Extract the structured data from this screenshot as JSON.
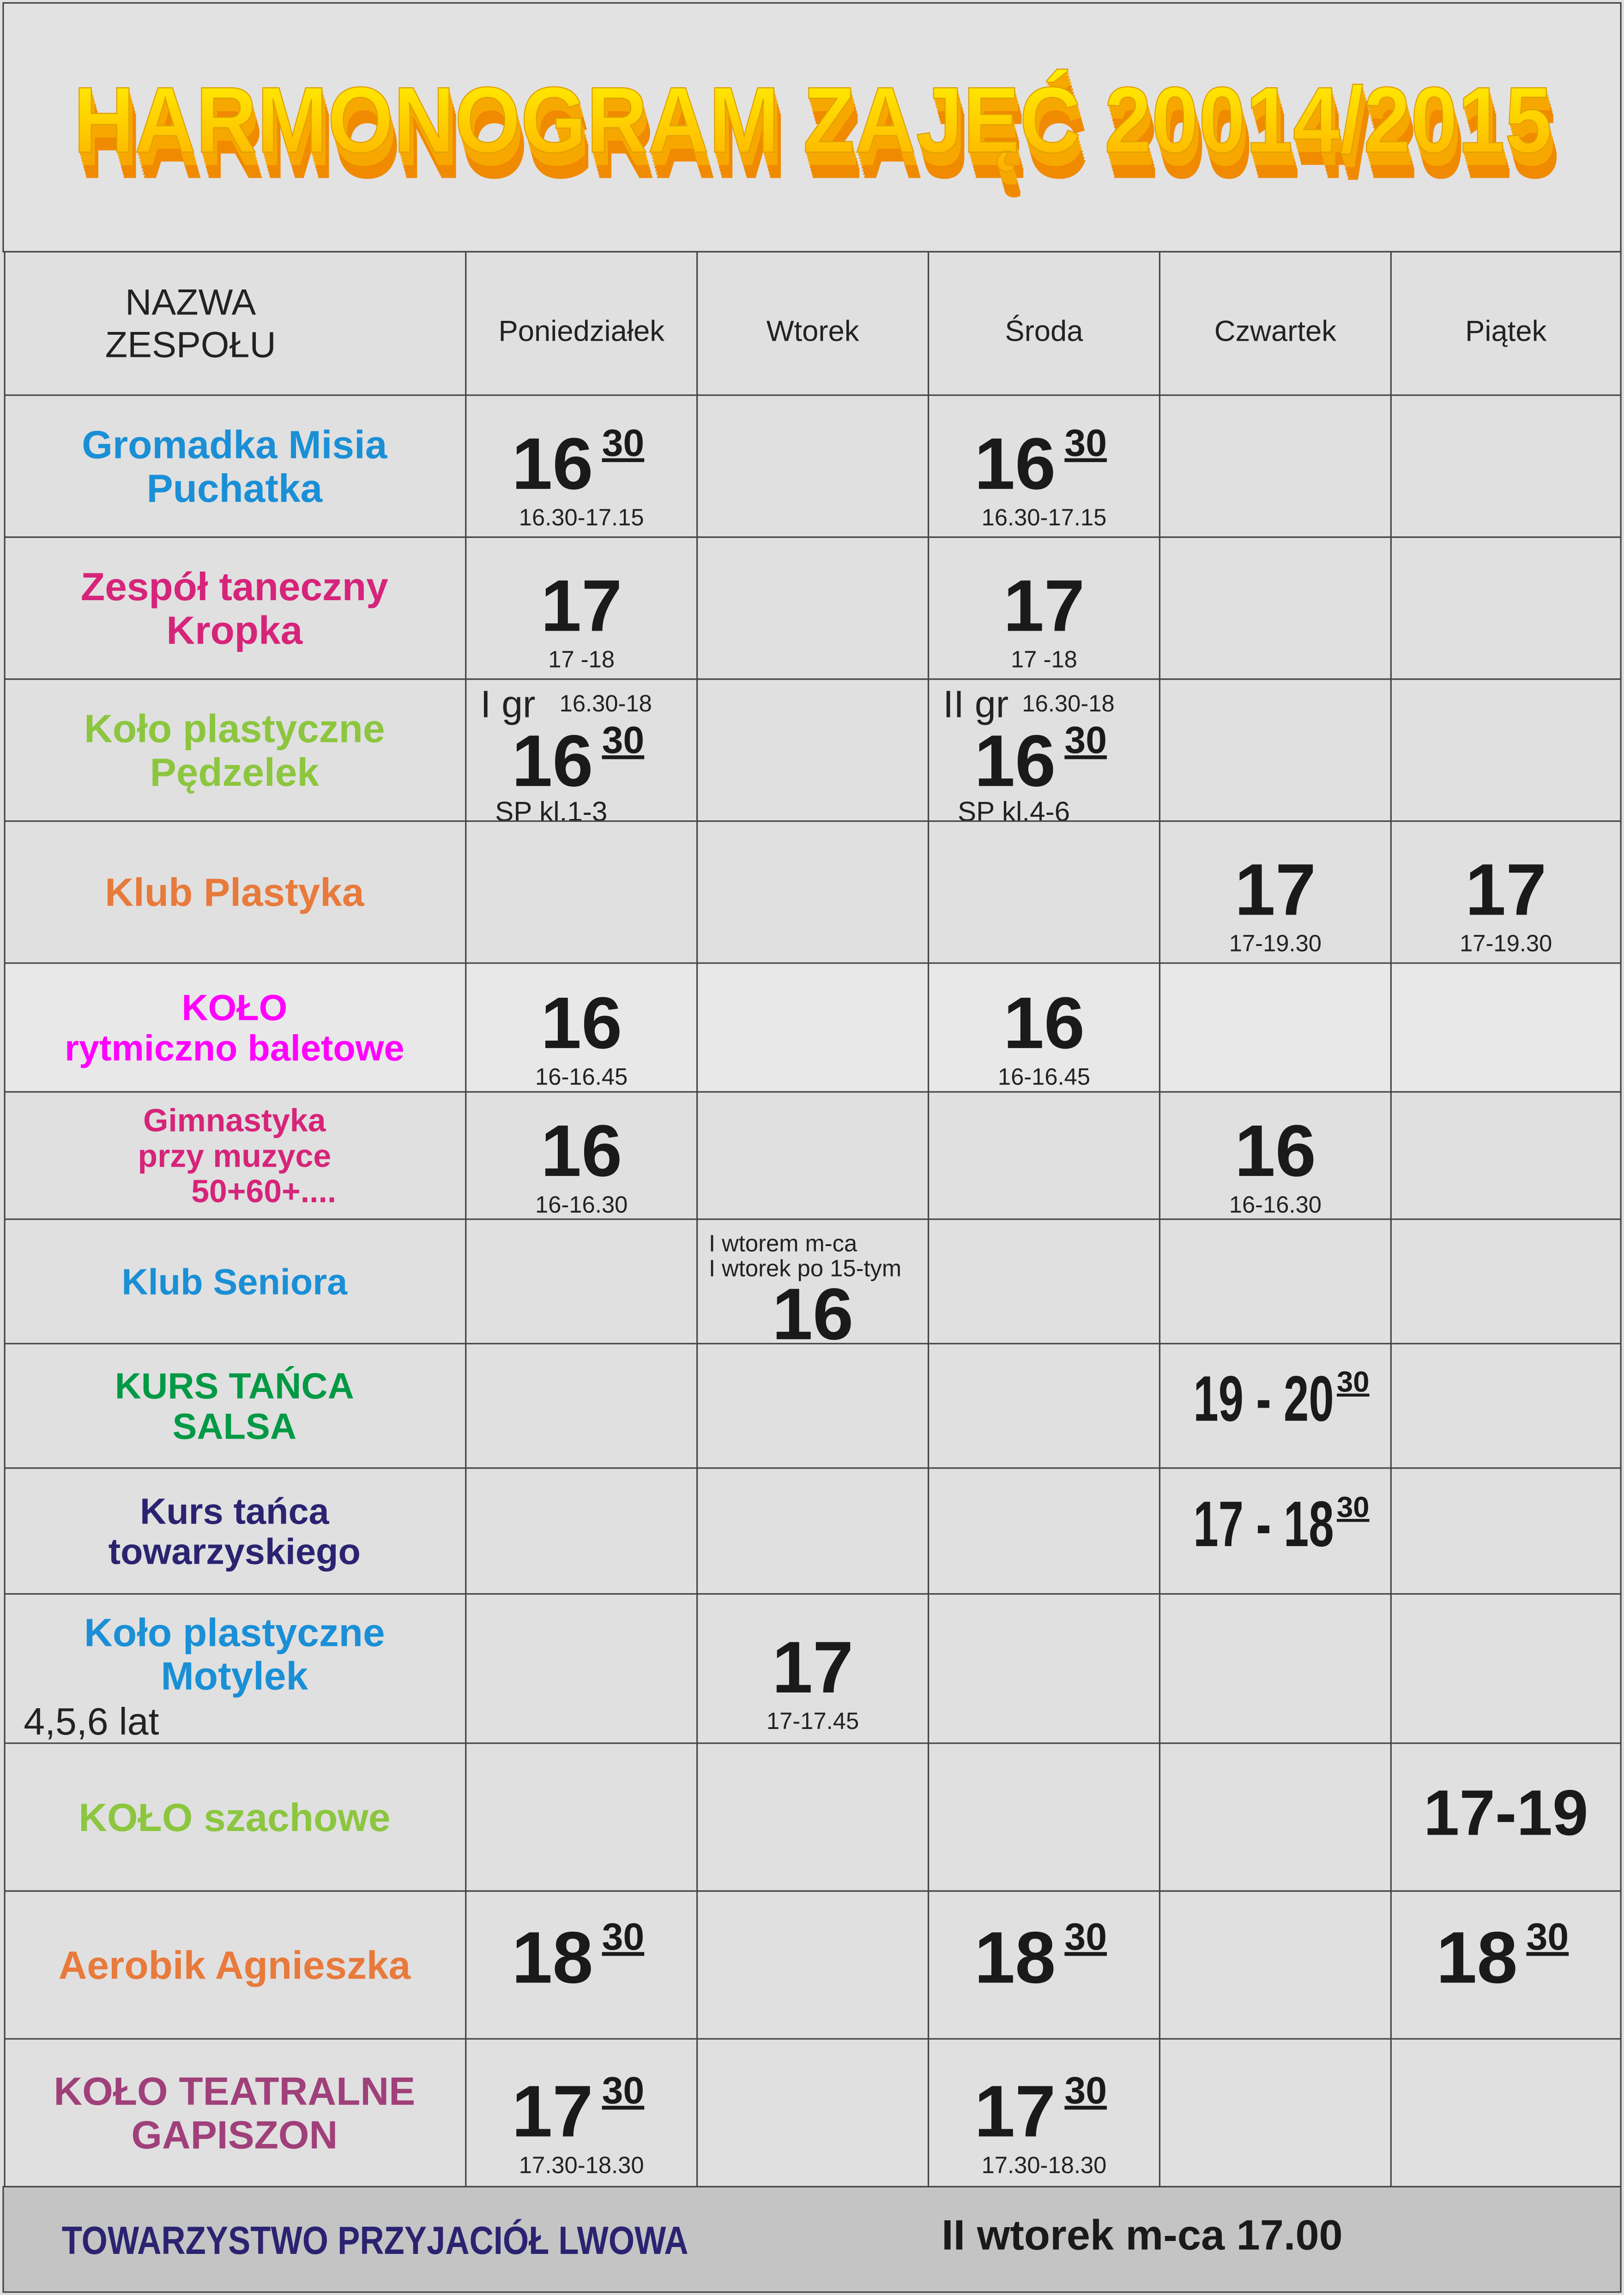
{
  "title": "HARMONOGRAM ZAJĘĆ 20014/2015",
  "header": {
    "name_label": [
      "NAZWA",
      "ZESPOŁU"
    ],
    "days": [
      "Poniedziałek",
      "Wtorek",
      "Środa",
      "Czwartek",
      "Piątek"
    ]
  },
  "rows": [
    {
      "name": [
        "Gromadka Misia",
        "Puchatka"
      ],
      "color": "#1a8fd6",
      "cells": [
        {
          "hour": "16",
          "minutes": "30",
          "range": "16.30-17.15"
        },
        null,
        {
          "hour": "16",
          "minutes": "30",
          "range": "16.30-17.15"
        },
        null,
        null
      ]
    },
    {
      "name": [
        "Zespół taneczny",
        "Kropka"
      ],
      "color": "#d6247a",
      "cells": [
        {
          "hour": "17",
          "range": "17 -18"
        },
        null,
        {
          "hour": "17",
          "range": "17 -18"
        },
        null,
        null
      ]
    },
    {
      "name": [
        "Koło plastyczne",
        "Pędzelek"
      ],
      "color": "#8cc63f",
      "cells": [
        {
          "group": "I gr",
          "range": "16.30-18",
          "hour": "16",
          "minutes": "30",
          "note": "SP kl.1-3"
        },
        null,
        {
          "group": "II gr",
          "range": "16.30-18",
          "hour": "16",
          "minutes": "30",
          "note": "SP kl.4-6"
        },
        null,
        null
      ]
    },
    {
      "name": [
        "Klub Plastyka"
      ],
      "color": "#e87a3c",
      "cells": [
        null,
        null,
        null,
        {
          "hour": "17",
          "range": "17-19.30"
        },
        {
          "hour": "17",
          "range": "17-19.30"
        }
      ]
    },
    {
      "name": [
        "KOŁO",
        "rytmiczno baletowe"
      ],
      "color": "#ff00ff",
      "cells": [
        {
          "hour": "16",
          "range": "16-16.45"
        },
        null,
        {
          "hour": "16",
          "range": "16-16.45"
        },
        null,
        null
      ]
    },
    {
      "name": [
        "Gimnastyka",
        "przy muzyce",
        "50+60+...."
      ],
      "color": "#d6247a",
      "cells": [
        {
          "hour": "16",
          "range": "16-16.30"
        },
        null,
        null,
        {
          "hour": "16",
          "range": "16-16.30"
        },
        null
      ]
    },
    {
      "name": [
        "Klub Seniora"
      ],
      "color": "#1a8fd6",
      "cells": [
        null,
        {
          "lines": [
            "I wtorem m-ca",
            "I wtorek po 15-tym"
          ],
          "hour": "16"
        },
        null,
        null,
        null
      ]
    },
    {
      "name": [
        "KURS TAŃCA",
        "SALSA"
      ],
      "color": "#009944",
      "cells": [
        null,
        null,
        null,
        {
          "hour": "19 - 20",
          "minutes": "30"
        },
        null
      ]
    },
    {
      "name": [
        "Kurs tańca",
        "towarzyskiego"
      ],
      "color": "#2b2370",
      "cells": [
        null,
        null,
        null,
        {
          "hour": "17 - 18",
          "minutes": "30"
        },
        null
      ]
    },
    {
      "name": [
        "Koło plastyczne",
        "Motylek"
      ],
      "sub": "4,5,6 lat",
      "color": "#1a8fd6",
      "cells": [
        null,
        {
          "hour": "17",
          "range": "17-17.45"
        },
        null,
        null,
        null
      ]
    },
    {
      "name": [
        "KOŁO szachowe"
      ],
      "color": "#8cc63f",
      "cells": [
        null,
        null,
        null,
        null,
        {
          "hour": "17-19"
        }
      ]
    },
    {
      "name": [
        "Aerobik Agnieszka"
      ],
      "color": "#e87a3c",
      "cells": [
        {
          "hour": "18",
          "minutes": "30"
        },
        null,
        {
          "hour": "18",
          "minutes": "30"
        },
        null,
        {
          "hour": "18",
          "minutes": "30"
        }
      ]
    },
    {
      "name": [
        "KOŁO TEATRALNE",
        "GAPISZON"
      ],
      "color": "#a0407a",
      "cells": [
        {
          "hour": "17",
          "minutes": "30",
          "range": "17.30-18.30"
        },
        null,
        {
          "hour": "17",
          "minutes": "30",
          "range": "17.30-18.30"
        },
        null,
        null
      ]
    }
  ],
  "footer": {
    "left": "TOWARZYSTWO PRZYJACIÓŁ LWOWA",
    "right": "II wtorek m-ca 17.00"
  }
}
